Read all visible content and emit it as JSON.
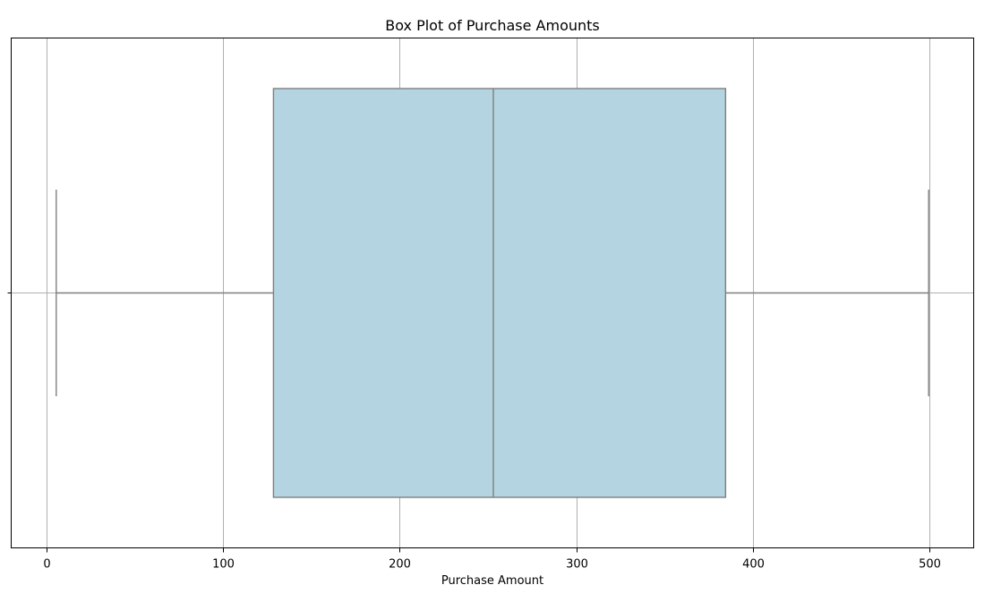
{
  "chart_data": {
    "type": "box",
    "title": "Box Plot of Purchase Amounts",
    "xlabel": "Purchase Amount",
    "ylabel": "",
    "orientation": "horizontal",
    "xlim": [
      -20,
      525
    ],
    "xticks": [
      0,
      100,
      200,
      300,
      400,
      500
    ],
    "xtick_labels": [
      "0",
      "100",
      "200",
      "300",
      "400",
      "500"
    ],
    "grid": true,
    "box": {
      "whisker_low": 5.5,
      "q1": 128.5,
      "median": 253,
      "q3": 384.5,
      "whisker_high": 499.5
    },
    "colors": {
      "box_fill": "#b3d4e0",
      "box_edge": "#7f7f7f",
      "grid": "#b0b0b0",
      "axes": "#000000"
    }
  }
}
